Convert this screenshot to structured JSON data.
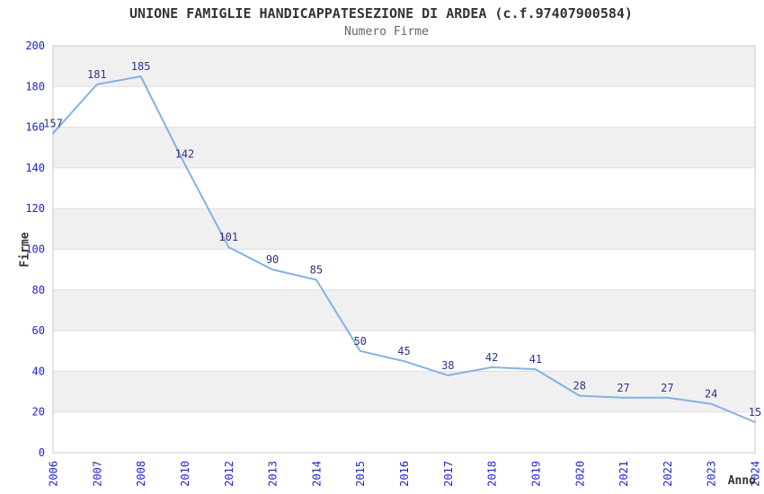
{
  "header": {
    "title": "UNIONE FAMIGLIE HANDICAPPATESEZIONE DI ARDEA (c.f.97407900584)",
    "subtitle": "Numero Firme"
  },
  "chart_data": {
    "type": "line",
    "title": "UNIONE FAMIGLIE HANDICAPPATESEZIONE DI ARDEA (c.f.97407900584)",
    "subtitle": "Numero Firme",
    "xlabel": "Anno",
    "ylabel": "Firme",
    "categories": [
      "2006",
      "2007",
      "2008",
      "2010",
      "2012",
      "2013",
      "2014",
      "2015",
      "2016",
      "2017",
      "2018",
      "2019",
      "2020",
      "2021",
      "2022",
      "2023",
      "2024"
    ],
    "values": [
      157,
      181,
      185,
      142,
      101,
      90,
      85,
      50,
      45,
      38,
      42,
      41,
      28,
      27,
      27,
      24,
      15
    ],
    "ylim": [
      0,
      200
    ],
    "yticks": [
      0,
      20,
      40,
      60,
      80,
      100,
      120,
      140,
      160,
      180,
      200
    ],
    "grid": true,
    "legend_position": "none",
    "band_fill": "alternating",
    "colors": {
      "line": "#84b1e4",
      "tick_label": "#2323cc",
      "data_label": "#333385",
      "band_gray": "#f0f0f0",
      "band_white": "#ffffff",
      "gridline": "#dddddd",
      "plot_border": "#c9c9c9",
      "title": "#333333",
      "subtitle": "#666666",
      "axis_title": "#333333",
      "background": "#ffffff"
    }
  }
}
